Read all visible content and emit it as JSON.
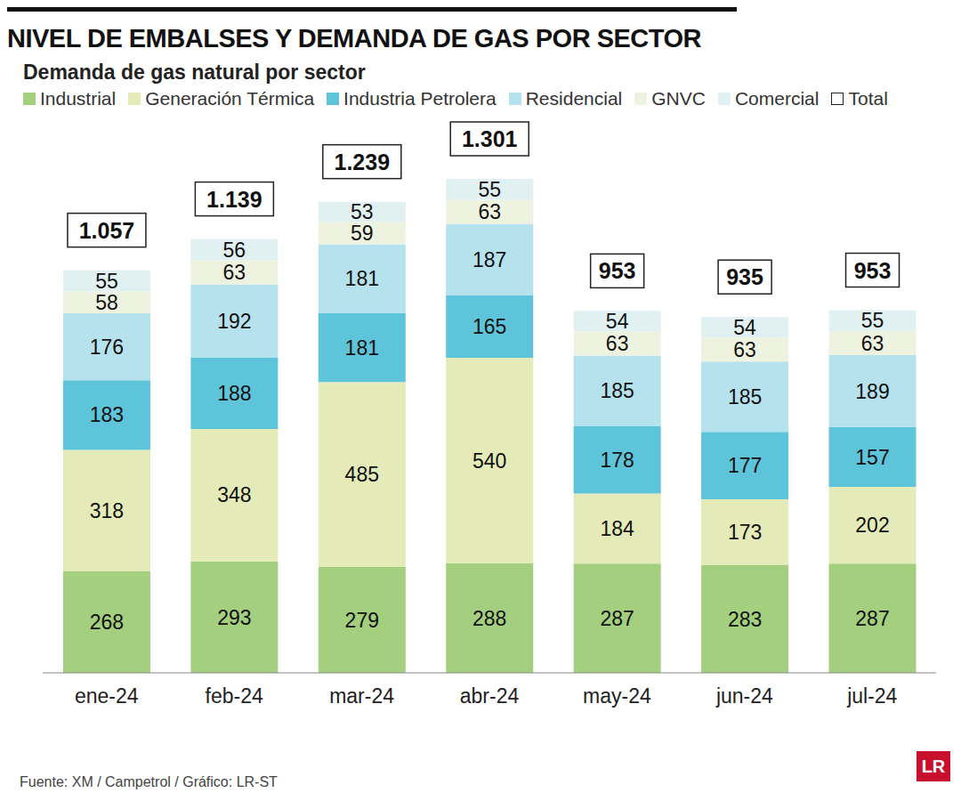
{
  "chart_data": {
    "type": "bar",
    "title": "NIVEL DE EMBALSES Y DEMANDA DE GAS POR SECTOR",
    "subtitle": "Demanda de gas natural por sector",
    "source": "Fuente: XM / Campetrol / Gráfico: LR-ST",
    "logo": "LR",
    "categories": [
      "ene-24",
      "feb-24",
      "mar-24",
      "abr-24",
      "may-24",
      "jun-24",
      "jul-24"
    ],
    "series": [
      {
        "name": "Industrial",
        "color": "#a3cf7f",
        "values": [
          268,
          293,
          279,
          288,
          287,
          283,
          287
        ]
      },
      {
        "name": "Generación Térmica",
        "color": "#e4ebb9",
        "values": [
          318,
          348,
          485,
          540,
          184,
          173,
          202
        ]
      },
      {
        "name": "Industria Petrolera",
        "color": "#5ec4d9",
        "values": [
          183,
          188,
          181,
          165,
          178,
          177,
          157
        ]
      },
      {
        "name": "Residencial",
        "color": "#b6e2ee",
        "values": [
          176,
          192,
          181,
          187,
          185,
          185,
          189
        ]
      },
      {
        "name": "GNVC",
        "color": "#eef3df",
        "values": [
          58,
          63,
          59,
          63,
          63,
          63,
          63
        ]
      },
      {
        "name": "Comercial",
        "color": "#e1f1f1",
        "values": [
          55,
          56,
          53,
          55,
          54,
          54,
          55
        ]
      },
      {
        "name": "Total",
        "type": "label",
        "color": "#ffffff",
        "values": [
          1057,
          1139,
          1239,
          1301,
          953,
          935,
          953
        ],
        "value_labels": [
          "1.057",
          "1.139",
          "1.239",
          "1.301",
          "953",
          "935",
          "953"
        ]
      }
    ],
    "stacked": true,
    "data_labels": true,
    "legend": "top",
    "tick_labels": "x",
    "grid": false
  }
}
